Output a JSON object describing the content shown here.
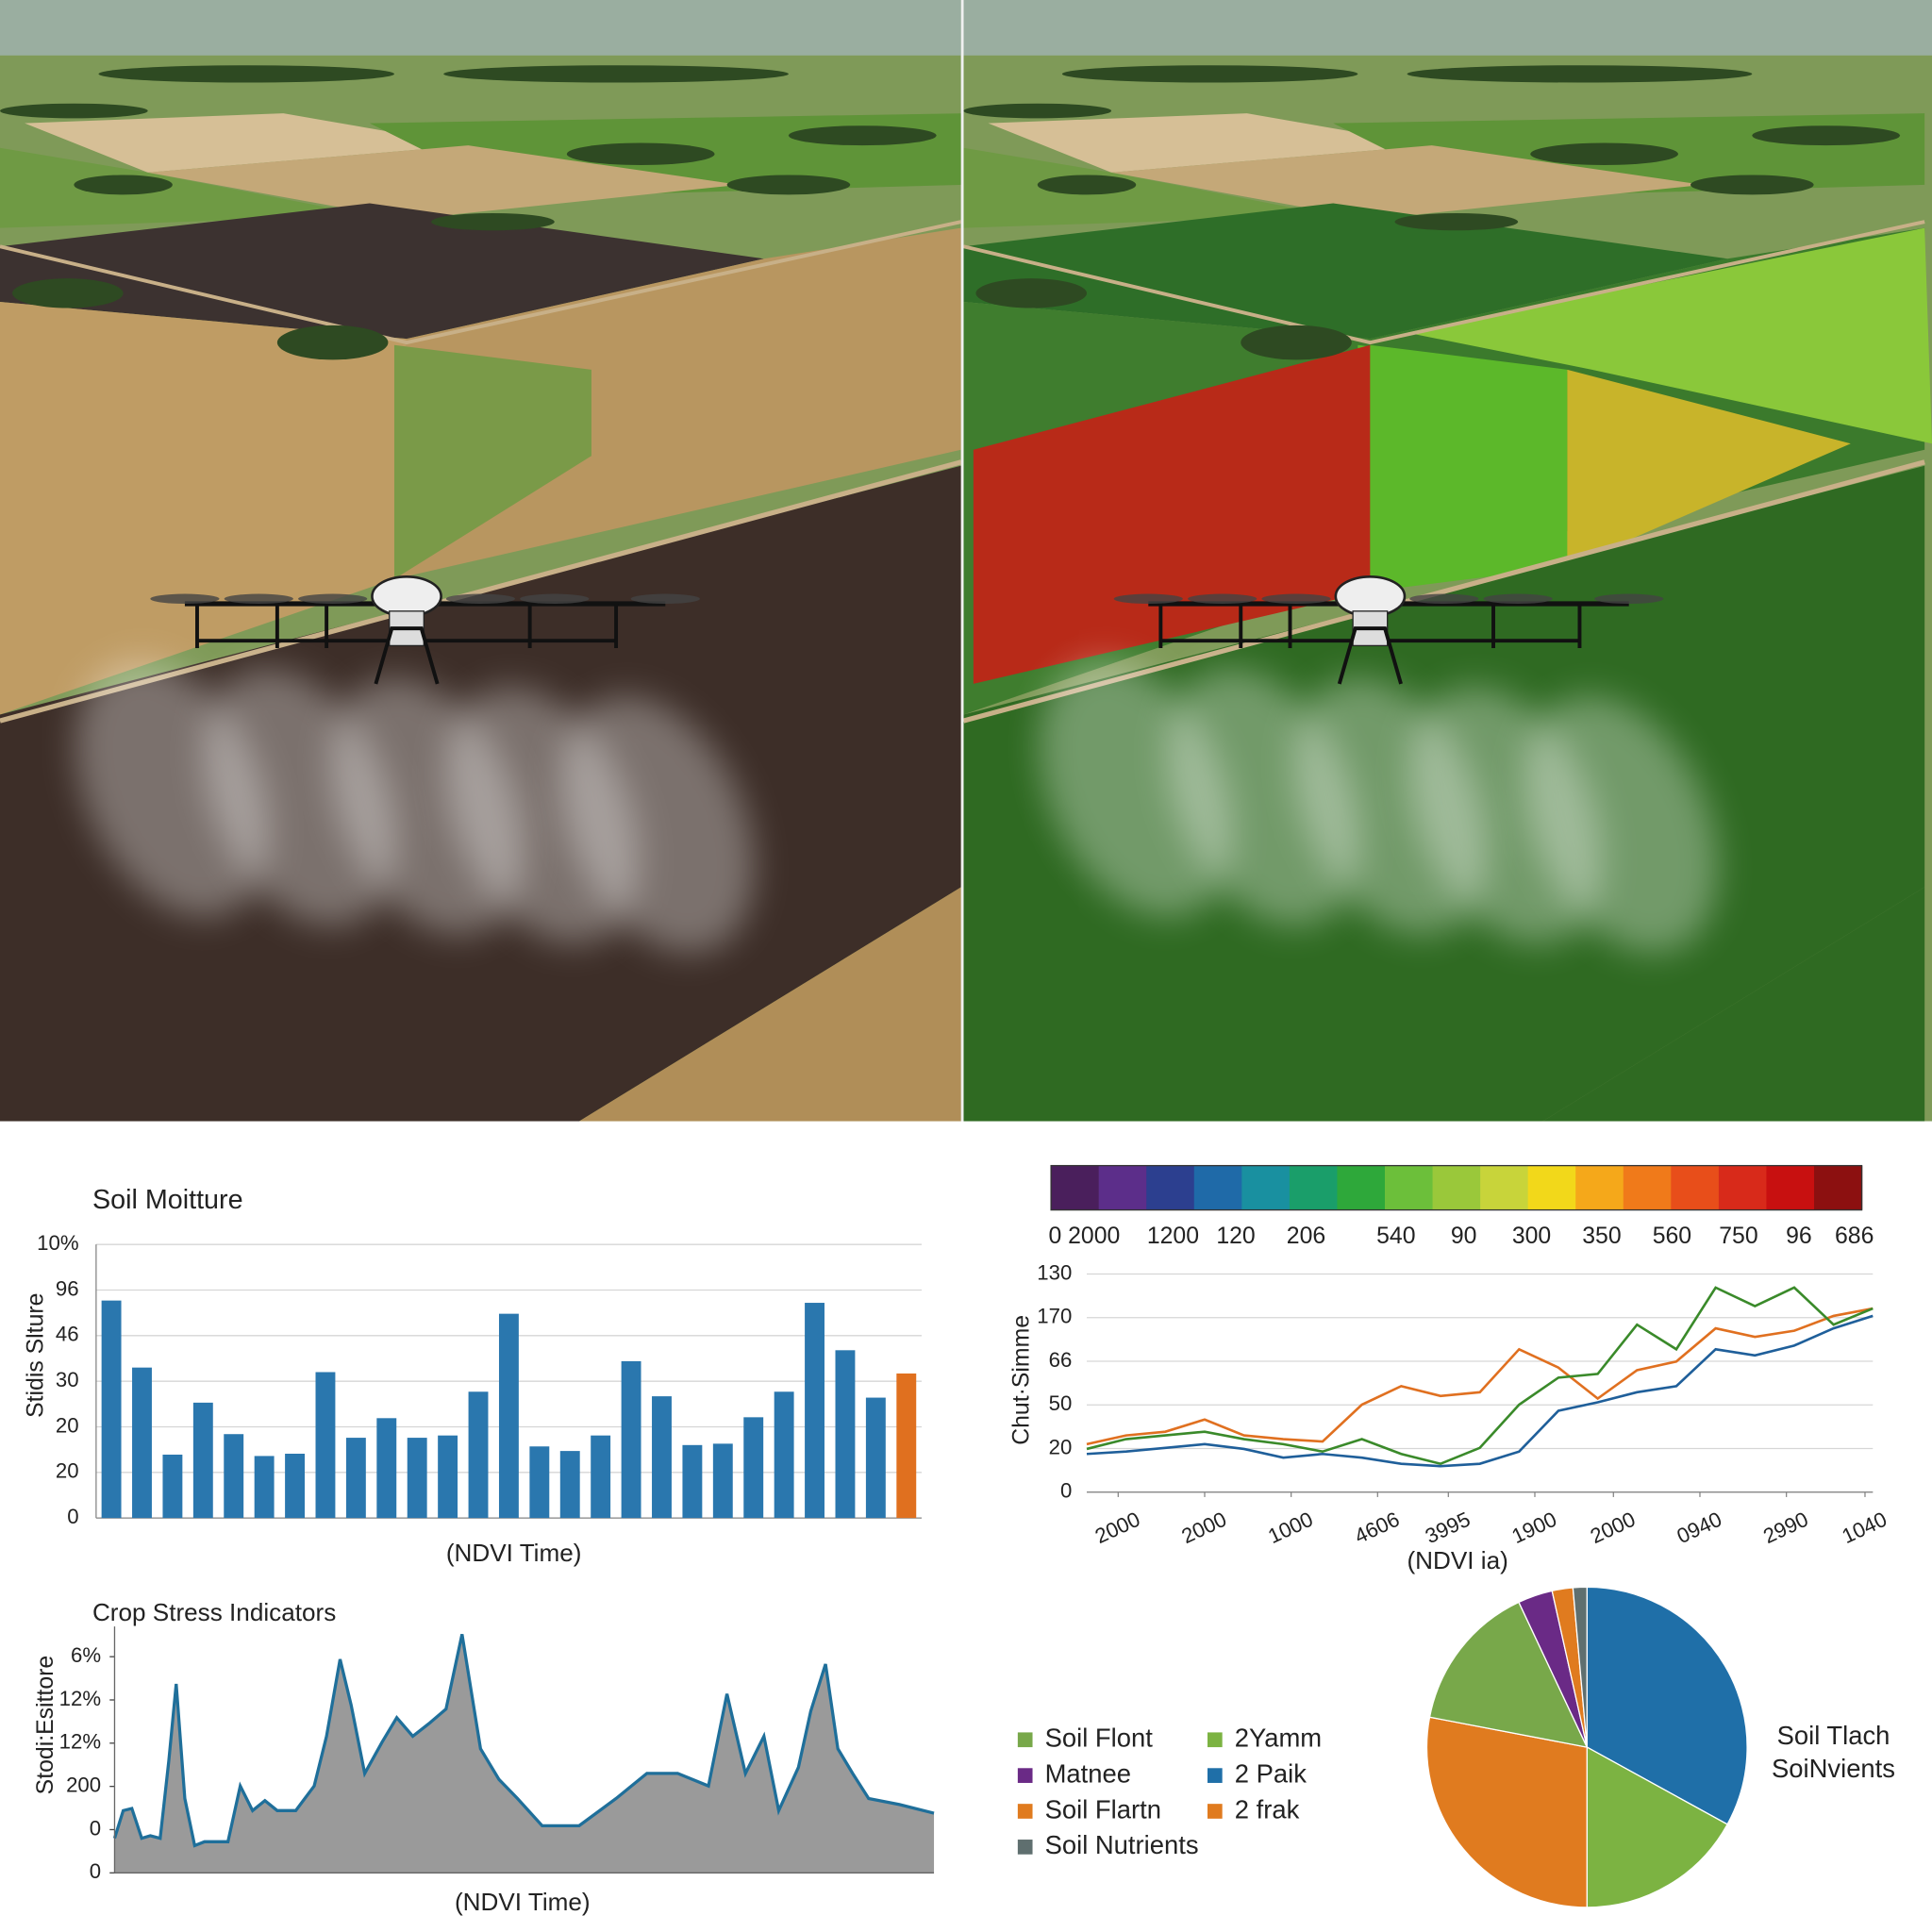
{
  "chart_data": [
    {
      "type": "bar",
      "title": "Soil Moitture",
      "y_label": "Stidis Slture",
      "x_label": "(NDVI Time)",
      "categories": [
        null,
        null,
        null,
        null,
        null,
        null,
        null,
        null,
        null,
        null,
        null,
        null,
        null,
        null,
        null,
        null,
        null,
        null,
        null,
        null,
        null,
        null,
        null,
        null,
        null,
        null,
        null
      ],
      "values": [
        47.7,
        33,
        13.9,
        25.3,
        18.4,
        13.6,
        14.1,
        32,
        17.6,
        21.9,
        17.6,
        18.1,
        27.7,
        44.8,
        15.7,
        14.7,
        18.1,
        34.4,
        26.7,
        16,
        16.3,
        22.1,
        27.7,
        47.2,
        36.8,
        26.4,
        31.7
      ],
      "colors": [
        "#2a77ae",
        "#2a77ae",
        "#2a77ae",
        "#2a77ae",
        "#2a77ae",
        "#2a77ae",
        "#2a77ae",
        "#2a77ae",
        "#2a77ae",
        "#2a77ae",
        "#2a77ae",
        "#2a77ae",
        "#2a77ae",
        "#2a77ae",
        "#2a77ae",
        "#2a77ae",
        "#2a77ae",
        "#2a77ae",
        "#2a77ae",
        "#2a77ae",
        "#2a77ae",
        "#2a77ae",
        "#2a77ae",
        "#2a77ae",
        "#2a77ae",
        "#2a77ae",
        "#e0701f"
      ],
      "ylim": [
        0,
        60
      ],
      "yticks": [
        0,
        {
          "value": 10,
          "label": "20"
        },
        20,
        30,
        {
          "value": 40,
          "label": "46"
        },
        {
          "value": 50,
          "label": "96"
        },
        {
          "value": 60,
          "label": "10%"
        }
      ],
      "grid": true
    },
    {
      "type": "line",
      "y_label": "Chut·Simme",
      "x_label": "(NDVI ia)",
      "colorbar": {
        "colors": [
          "#4a1f5c",
          "#5c2e8a",
          "#2c3f8f",
          "#1f6aa8",
          "#1990a0",
          "#1a9e6a",
          "#2ea83a",
          "#6cbf3a",
          "#9ac83a",
          "#c8d43a",
          "#f2d81a",
          "#f5a81a",
          "#f07a1a",
          "#e84e1a",
          "#d82a1a",
          "#c81010",
          "#8c1010"
        ],
        "labels": [
          "0 2000",
          "1200",
          "120",
          "206",
          "540",
          "90",
          "300",
          "350",
          "560",
          "750",
          "96",
          "686"
        ]
      },
      "x": [
        0,
        5,
        10,
        15,
        20,
        25,
        30,
        35,
        40,
        45,
        50,
        55,
        60,
        65,
        70,
        75,
        80,
        85,
        90,
        95,
        100
      ],
      "series": [
        {
          "color": "#1f5f9a",
          "values": [
            17.5,
            18.6,
            20.3,
            22,
            19.8,
            15.8,
            17.5,
            15.8,
            13,
            11.9,
            13,
            18.6,
            37.3,
            41.2,
            45.8,
            48.6,
            65.5,
            62.7,
            67.2,
            75.1,
            80.8
          ]
        },
        {
          "color": "#e07020",
          "values": [
            22,
            26,
            27.7,
            33.3,
            26,
            24.3,
            23.2,
            40.1,
            48.6,
            44.1,
            45.8,
            65.5,
            57.1,
            42.9,
            55.9,
            59.9,
            75.1,
            71.2,
            74,
            80.8,
            84.2
          ]
        },
        {
          "color": "#3a8a2a",
          "values": [
            19.8,
            24.3,
            26,
            27.7,
            24.3,
            22,
            18.6,
            24.3,
            17.5,
            13,
            20.3,
            40.1,
            52.5,
            54.2,
            76.8,
            65.5,
            93.8,
            85.3,
            93.8,
            76.8,
            84.2
          ]
        }
      ],
      "xlim": [
        0,
        100
      ],
      "xticks": [
        {
          "value": 4,
          "label": "2000"
        },
        {
          "value": 15,
          "label": "2000"
        },
        {
          "value": 26,
          "label": "1000"
        },
        {
          "value": 37,
          "label": "4606"
        },
        {
          "value": 46,
          "label": "3995"
        },
        {
          "value": 57,
          "label": "1900"
        },
        {
          "value": 67,
          "label": "2000"
        },
        {
          "value": 78,
          "label": "0940"
        },
        {
          "value": 89,
          "label": "2990"
        },
        {
          "value": 99,
          "label": "1040"
        }
      ],
      "ylim": [
        0,
        100
      ],
      "yticks": [
        0,
        20,
        {
          "value": 40,
          "label": "50"
        },
        {
          "value": 60,
          "label": "66"
        },
        {
          "value": 80,
          "label": "170"
        },
        {
          "value": 100,
          "label": "130"
        }
      ],
      "grid": true
    },
    {
      "type": "area",
      "title": "Crop Stress Indicators",
      "y_label": "Stodi:Esittore",
      "x_label": "(NDVI Time)",
      "x": [
        0,
        7,
        14,
        22,
        29,
        37,
        44,
        50,
        57,
        65,
        73,
        82,
        92,
        102,
        112,
        122,
        132,
        147,
        162,
        172,
        183,
        192,
        203,
        217,
        229,
        242,
        255,
        269,
        282,
        297,
        312,
        327,
        347,
        377,
        407,
        432,
        457,
        482,
        497,
        512,
        527,
        539,
        555,
        565,
        577,
        587,
        599,
        612,
        637,
        665
      ],
      "values": [
        8,
        14.4,
        14.9,
        8,
        8.6,
        8,
        25.9,
        43.7,
        17.2,
        6.3,
        7.2,
        7.2,
        7.2,
        20.1,
        14.4,
        16.7,
        14.4,
        14.4,
        20.1,
        31.6,
        49.4,
        38.8,
        23,
        30.2,
        35.9,
        31.6,
        34.5,
        37.9,
        55.2,
        28.7,
        21.6,
        17.2,
        10.9,
        10.9,
        17.2,
        23,
        23,
        20.1,
        41.4,
        23,
        31.6,
        14.4,
        24.4,
        37.4,
        48.3,
        28.7,
        23,
        17.2,
        15.8,
        13.8
      ],
      "color": "#9a9a9a",
      "line_color": "#1f6f9a",
      "xlim": [
        0,
        665
      ],
      "ylim": [
        0,
        57
      ],
      "yticks": [
        0,
        {
          "value": 10,
          "label": "0"
        },
        {
          "value": 20,
          "label": "200"
        },
        {
          "value": 30,
          "label": "12%"
        },
        {
          "value": 40,
          "label": "12%"
        },
        {
          "value": 50,
          "label": "6%"
        }
      ],
      "grid": false
    },
    {
      "type": "pie",
      "annotations": [
        "Soil Tlach",
        "SoiNvients"
      ],
      "categories": [
        "2 Paik",
        "2Yamm",
        "Soil Flartn",
        "Soil Flont",
        "Matnee",
        "2 frak",
        "Soil Nutrients"
      ],
      "values": [
        33,
        17,
        28,
        15,
        3.5,
        2.1,
        1.4
      ],
      "colors": [
        "#1f6fa8",
        "#7cb342",
        "#e07b1f",
        "#78a84a",
        "#6a2a86",
        "#e07b1f",
        "#5f6f6f"
      ]
    }
  ]
}
